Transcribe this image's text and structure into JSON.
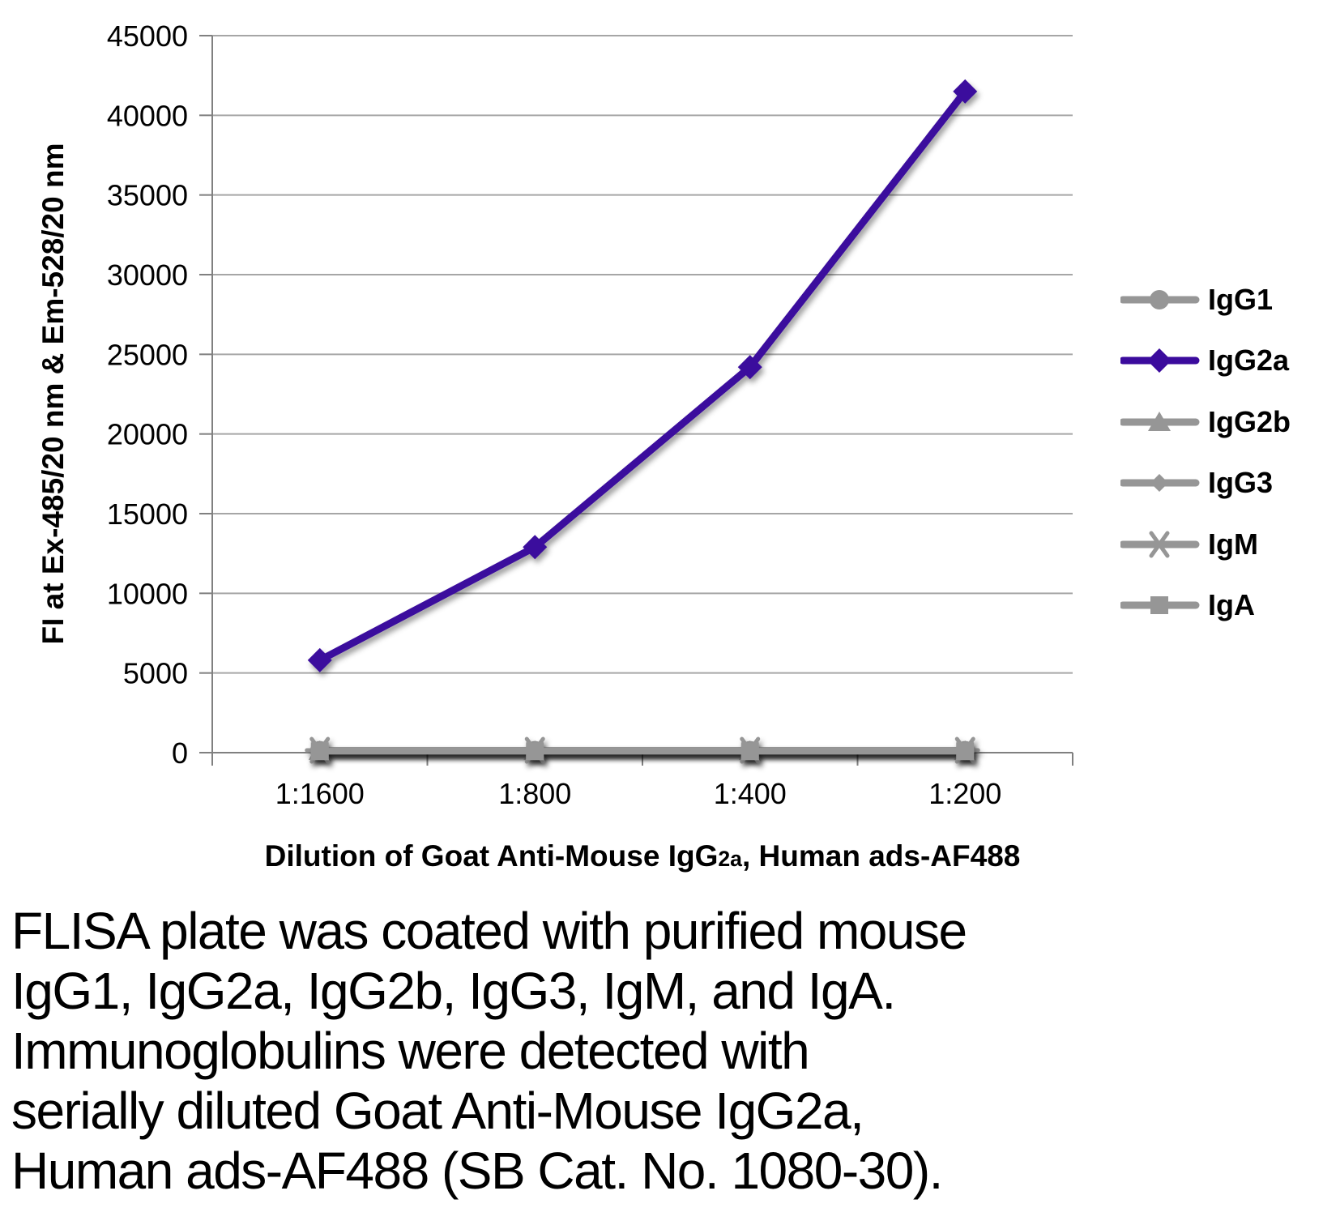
{
  "figure": {
    "caption_lines": [
      "FLISA plate was coated with purified mouse",
      "IgG1, IgG2a, IgG2b, IgG3, IgM, and IgA.",
      "Immunoglobulins were detected with",
      "serially diluted Goat Anti-Mouse IgG2a,",
      "Human ads-AF488 (SB Cat. No. 1080-30)."
    ]
  },
  "chart_data": {
    "type": "line",
    "title": "",
    "xlabel": "Dilution of Goat Anti-Mouse IgG2a, Human ads-AF488",
    "xlabel_parts": {
      "pre": "Dilution of Goat Anti-Mouse IgG",
      "sub": "2a",
      "post": ", Human ads-AF488"
    },
    "ylabel": "FI at Ex-485/20 nm & Em-528/20 nm",
    "categories": [
      "1:1600",
      "1:800",
      "1:400",
      "1:200"
    ],
    "y_ticks": [
      0,
      5000,
      10000,
      15000,
      20000,
      25000,
      30000,
      35000,
      40000,
      45000
    ],
    "ylim": [
      0,
      45000
    ],
    "grid": "horizontal",
    "legend_position": "right",
    "series": [
      {
        "name": "IgG1",
        "marker": "circle",
        "color": "#969696",
        "highlight": false,
        "values": [
          120,
          120,
          120,
          120
        ]
      },
      {
        "name": "IgG2a",
        "marker": "diamond",
        "color": "#3B0B9D",
        "highlight": true,
        "values": [
          5800,
          12900,
          24200,
          41500
        ]
      },
      {
        "name": "IgG2b",
        "marker": "triangle",
        "color": "#969696",
        "highlight": false,
        "values": [
          110,
          110,
          110,
          110
        ]
      },
      {
        "name": "IgG3",
        "marker": "diamond-small",
        "color": "#969696",
        "highlight": false,
        "values": [
          100,
          100,
          100,
          100
        ]
      },
      {
        "name": "IgM",
        "marker": "asterisk",
        "color": "#969696",
        "highlight": false,
        "values": [
          150,
          150,
          150,
          150
        ]
      },
      {
        "name": "IgA",
        "marker": "square",
        "color": "#969696",
        "highlight": false,
        "values": [
          90,
          90,
          90,
          90
        ]
      }
    ]
  },
  "colors": {
    "grid": "#A6A6A6",
    "axis": "#808080",
    "text": "#000000"
  }
}
